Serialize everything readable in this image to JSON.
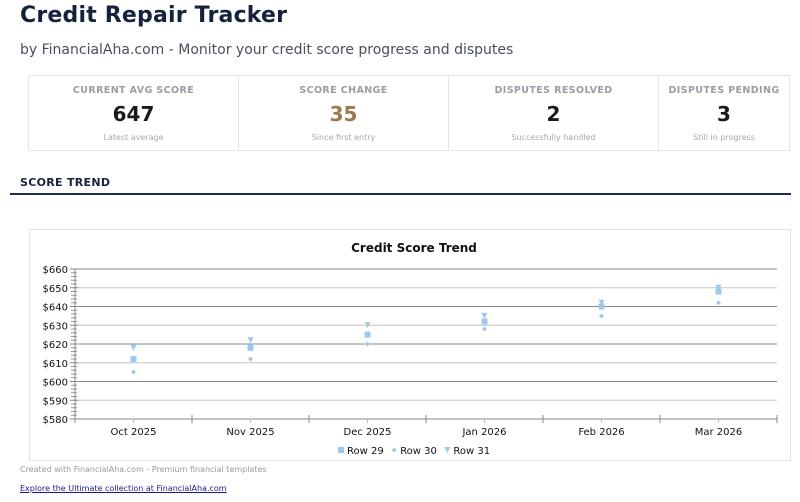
{
  "header": {
    "title": "Credit Repair Tracker",
    "subtitle": "by FinancialAha.com - Monitor your credit score progress and disputes"
  },
  "stats": [
    {
      "label": "CURRENT AVG SCORE",
      "value": "647",
      "sub": "Latest average"
    },
    {
      "label": "SCORE CHANGE",
      "value": "35",
      "sub": "Since first entry",
      "color": "#9b7a4f"
    },
    {
      "label": "DISPUTES RESOLVED",
      "value": "2",
      "sub": "Successfully handled"
    },
    {
      "label": "DISPUTES PENDING",
      "value": "3",
      "sub": "Still in progress"
    }
  ],
  "section": {
    "title": "SCORE TREND"
  },
  "colors": {
    "primary": "#16213e",
    "accent": "#9b7a4f",
    "series": "#9cc8ee",
    "grid": "#999999"
  },
  "chart_data": {
    "type": "scatter",
    "title": "Credit Score Trend",
    "xlabel": "",
    "ylabel": "",
    "categories": [
      "Oct 2025",
      "Nov 2025",
      "Dec 2025",
      "Jan 2026",
      "Feb 2026",
      "Mar 2026"
    ],
    "series": [
      {
        "name": "Row 29",
        "marker": "square",
        "values": [
          612,
          618,
          625,
          632,
          640,
          648
        ]
      },
      {
        "name": "Row 30",
        "marker": "diamond",
        "values": [
          605,
          612,
          620,
          628,
          635,
          642
        ]
      },
      {
        "name": "Row 31",
        "marker": "triangle-down",
        "values": [
          618,
          622,
          630,
          635,
          642,
          650
        ]
      }
    ],
    "ylim": [
      580,
      660
    ],
    "yticks": [
      "$580",
      "$590",
      "$600",
      "$610",
      "$620",
      "$630",
      "$640",
      "$650",
      "$660"
    ],
    "grid": true,
    "legend_position": "bottom"
  },
  "footer": {
    "note": "Created with FinancialAha.com - Premium financial templates",
    "link": "Explore the Ultimate collection at FinancialAha.com"
  }
}
